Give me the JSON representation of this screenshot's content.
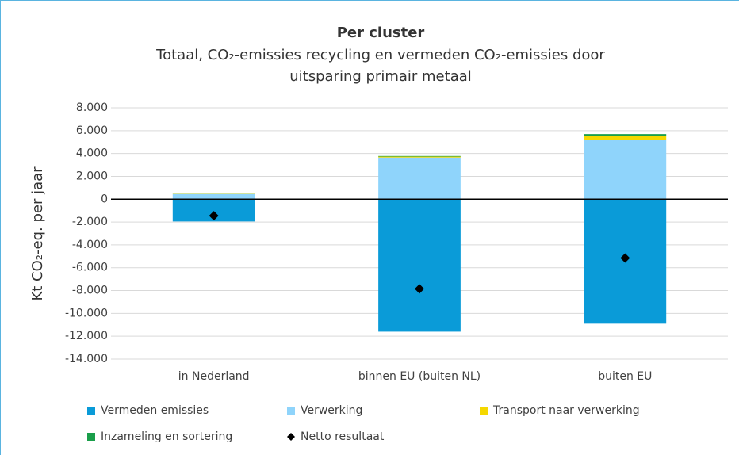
{
  "chart_data": {
    "type": "bar",
    "stacked": true,
    "title": "Per cluster",
    "subtitle": [
      "Totaal, CO₂-emissies recycling en vermeden CO₂-emissies door",
      "uitsparing  primair metaal"
    ],
    "ylabel": "Kt CO₂-eq. per jaar",
    "categories": [
      "in Nederland",
      "binnen EU (buiten NL)",
      "buiten EU"
    ],
    "series": [
      {
        "name": "Vermeden emissies",
        "color": "#0a9bd8",
        "values": [
          -1950,
          -11600,
          -10900
        ]
      },
      {
        "name": "Verwerking",
        "color": "#8fd4fb",
        "values": [
          450,
          3650,
          5200
        ]
      },
      {
        "name": "Transport naar verwerking",
        "color": "#f5d800",
        "values": [
          20,
          80,
          350
        ]
      },
      {
        "name": "Inzameling en sortering",
        "color": "#1a9e4a",
        "values": [
          10,
          50,
          150
        ]
      },
      {
        "name": "Netto resultaat",
        "color": "#000000",
        "type": "marker",
        "values": [
          -1450,
          -7850,
          -5150
        ]
      }
    ],
    "ylim": [
      -14000,
      8000
    ],
    "yticks": [
      {
        "value": -14000,
        "label": "-14.000"
      },
      {
        "value": -12000,
        "label": "-12.000"
      },
      {
        "value": -10000,
        "label": "-10.000"
      },
      {
        "value": -8000,
        "label": "-8.000"
      },
      {
        "value": -6000,
        "label": "-6.000"
      },
      {
        "value": -4000,
        "label": "-4.000"
      },
      {
        "value": -2000,
        "label": "-2.000"
      },
      0,
      {
        "value": 2000,
        "label": "2.000"
      },
      {
        "value": 4000,
        "label": "4.000"
      },
      {
        "value": 6000,
        "label": "6.000"
      },
      {
        "value": 8000,
        "label": "8.000"
      }
    ],
    "grid": true
  }
}
